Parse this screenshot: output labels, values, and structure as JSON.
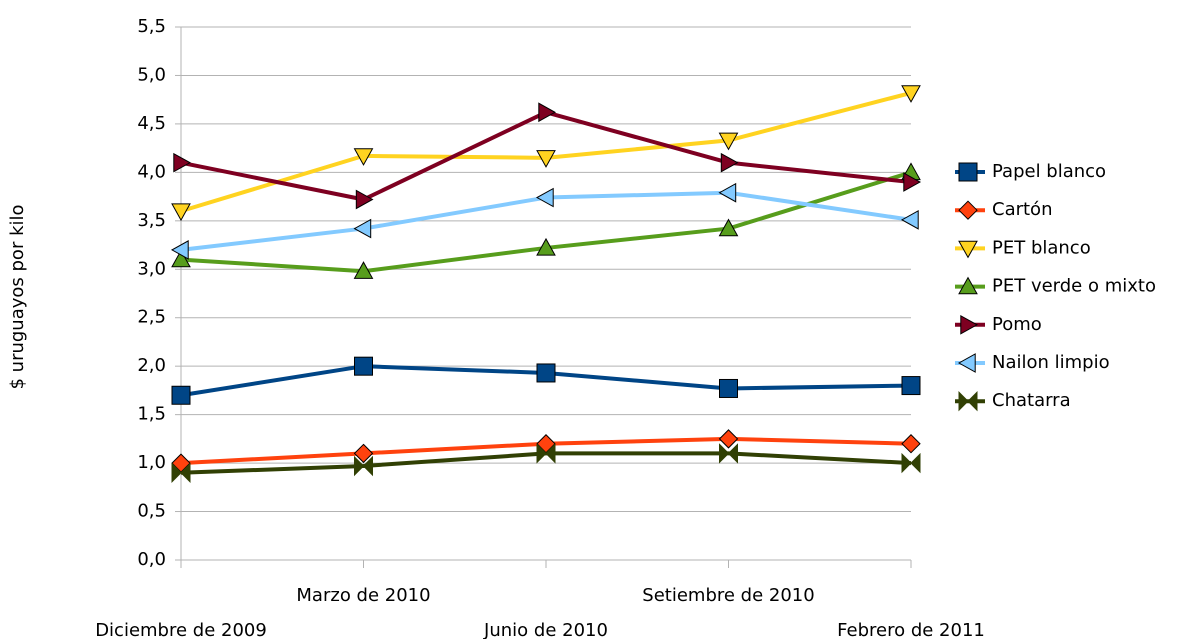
{
  "chart_data": {
    "type": "line",
    "y_label": "$ uruguayos por kilo",
    "categories": [
      "Diciembre de 2009",
      "Marzo de 2010",
      "Junio de 2010",
      "Setiembre de 2010",
      "Febrero de 2011"
    ],
    "series": [
      {
        "name": "Papel blanco",
        "color": "#004586",
        "marker": "square",
        "values": [
          1.7,
          2.0,
          1.93,
          1.77,
          1.8
        ]
      },
      {
        "name": "Cartón",
        "color": "#ff420e",
        "marker": "diamond",
        "values": [
          1.0,
          1.1,
          1.2,
          1.25,
          1.2
        ]
      },
      {
        "name": "PET blanco",
        "color": "#ffd320",
        "marker": "triangle-down",
        "values": [
          3.6,
          4.17,
          4.15,
          4.33,
          4.82
        ]
      },
      {
        "name": "PET verde o mixto",
        "color": "#579d1c",
        "marker": "triangle-up",
        "values": [
          3.1,
          2.98,
          3.22,
          3.42,
          4.0
        ]
      },
      {
        "name": "Pomo",
        "color": "#7e0021",
        "marker": "triangle-right",
        "values": [
          4.1,
          3.72,
          4.62,
          4.1,
          3.9
        ]
      },
      {
        "name": "Nailon limpio",
        "color": "#83caff",
        "marker": "triangle-left",
        "values": [
          3.2,
          3.42,
          3.74,
          3.79,
          3.51
        ]
      },
      {
        "name": "Chatarra",
        "color": "#314004",
        "marker": "bowtie",
        "values": [
          0.9,
          0.97,
          1.1,
          1.1,
          1.0
        ]
      }
    ],
    "ylim": [
      0,
      5.5
    ],
    "yticks": [
      {
        "value": 0,
        "label": "0,0"
      },
      {
        "value": 0.5,
        "label": "0,5"
      },
      {
        "value": 1,
        "label": "1,0"
      },
      {
        "value": 1.5,
        "label": "1,5"
      },
      {
        "value": 2,
        "label": "2,0"
      },
      {
        "value": 2.5,
        "label": "2,5"
      },
      {
        "value": 3,
        "label": "3,0"
      },
      {
        "value": 3.5,
        "label": "3,5"
      },
      {
        "value": 4,
        "label": "4,0"
      },
      {
        "value": 4.5,
        "label": "4,5"
      },
      {
        "value": 5,
        "label": "5,0"
      },
      {
        "value": 5.5,
        "label": "5,5"
      }
    ],
    "grid": true,
    "legend": "right"
  }
}
